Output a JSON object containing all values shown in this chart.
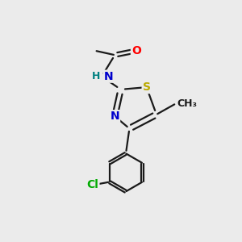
{
  "background_color": "#ebebeb",
  "bond_color": "#1a1a1a",
  "bond_width": 1.6,
  "atom_colors": {
    "O": "#ff0000",
    "N": "#0000cc",
    "N_H": "#008080",
    "S": "#bbaa00",
    "Cl": "#00aa00",
    "C": "#1a1a1a"
  },
  "fig_width": 3.0,
  "fig_height": 3.0,
  "dpi": 100,
  "xlim": [
    0,
    10
  ],
  "ylim": [
    0,
    10
  ]
}
